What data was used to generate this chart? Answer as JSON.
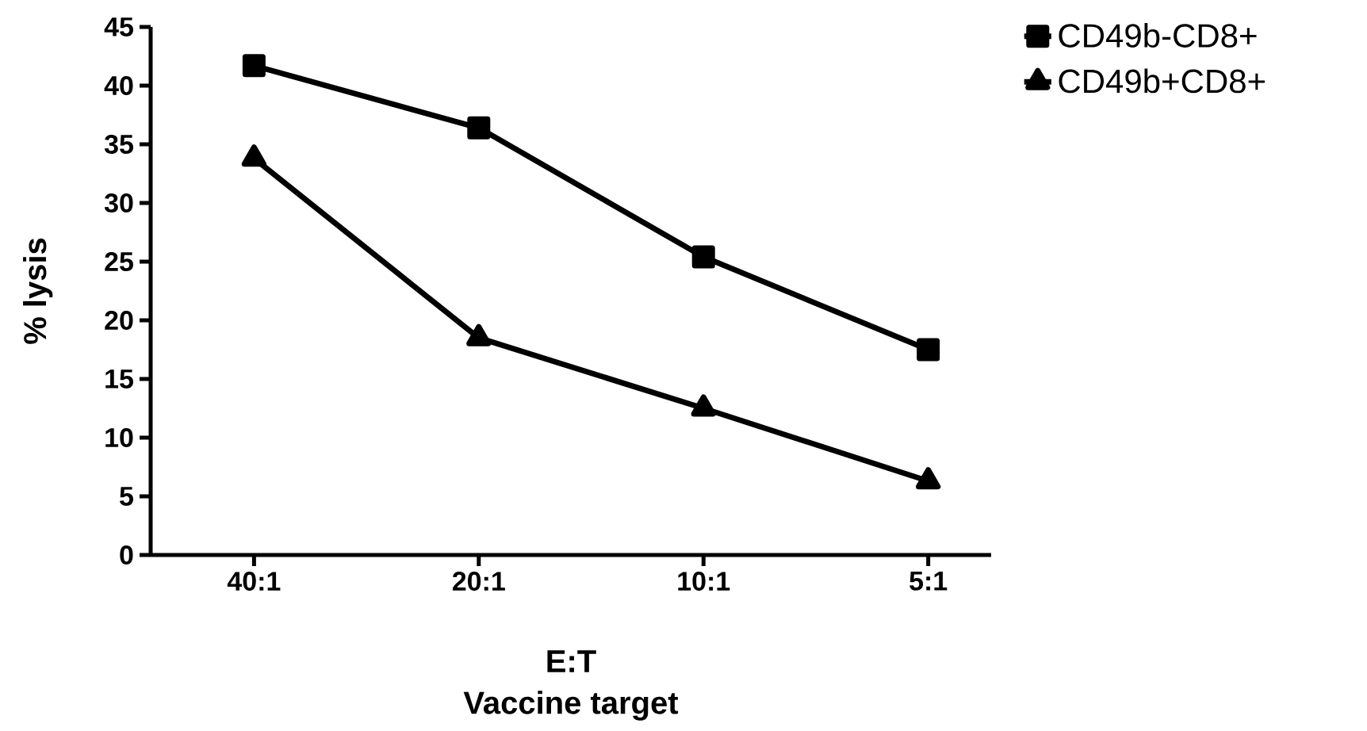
{
  "chart_data": {
    "type": "line",
    "xlabel": "E:T",
    "ylabel": "% lysis",
    "annotations": [
      "Vaccine target"
    ],
    "categories": [
      "40:1",
      "20:1",
      "10:1",
      "5:1"
    ],
    "series": [
      {
        "name": "CD49b-CD8+",
        "color": "#000000",
        "marker": "square",
        "values": [
          41.7,
          36.4,
          25.4,
          17.5
        ]
      },
      {
        "name": "CD49b+CD8+",
        "color": "#000000",
        "marker": "triangle",
        "values": [
          33.8,
          18.5,
          12.5,
          6.3
        ]
      }
    ],
    "ylim": [
      0,
      45
    ],
    "yticks": [
      0,
      5,
      10,
      15,
      20,
      25,
      30,
      35,
      40,
      45
    ],
    "legend": "top right",
    "grid": false,
    "line_style": "solid"
  }
}
